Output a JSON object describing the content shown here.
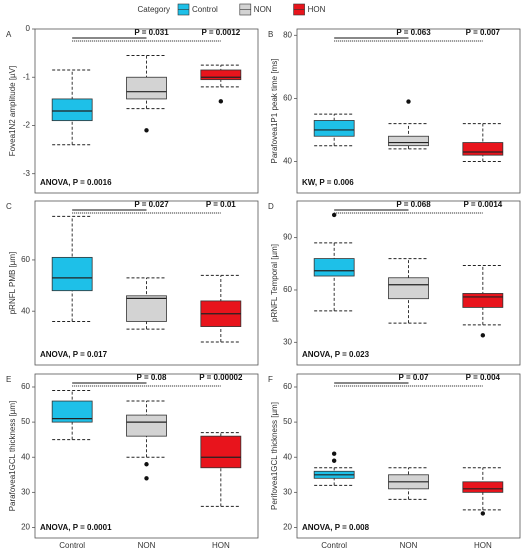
{
  "legend": {
    "title": "Category",
    "items": [
      {
        "name": "Control",
        "color": "#1ec0e8"
      },
      {
        "name": "NON",
        "color": "#d3d3d3"
      },
      {
        "name": "HON",
        "color": "#e8141c"
      }
    ]
  },
  "chart_data": [
    {
      "type": "box",
      "panel": "A",
      "ylabel": "Fovea1N2 amplitude [µV]",
      "ylim": [
        -3.4,
        0
      ],
      "yticks": [
        0,
        -1,
        -2,
        -3
      ],
      "boxes": [
        {
          "min": -2.4,
          "q1": -1.9,
          "median": -1.7,
          "q3": -1.45,
          "max": -0.85,
          "outliers": []
        },
        {
          "min": -1.65,
          "q1": -1.45,
          "median": -1.3,
          "q3": -1.0,
          "max": -0.55,
          "outliers": [
            -2.1
          ]
        },
        {
          "min": -1.2,
          "q1": -1.05,
          "median": -1.0,
          "q3": -0.85,
          "max": -0.75,
          "outliers": [
            -1.5
          ]
        }
      ],
      "pvalues": [
        "P = 0.031",
        "P = 0.0012"
      ],
      "test": "ANOVA, P = 0.0016"
    },
    {
      "type": "box",
      "panel": "B",
      "ylabel": "Parafovea1P1 peak time [ms]",
      "ylim": [
        30,
        82
      ],
      "yticks": [
        40,
        60,
        80
      ],
      "boxes": [
        {
          "min": 45,
          "q1": 48,
          "median": 50,
          "q3": 53,
          "max": 55,
          "outliers": []
        },
        {
          "min": 44,
          "q1": 45,
          "median": 46,
          "q3": 48,
          "max": 52,
          "outliers": [
            59
          ]
        },
        {
          "min": 40,
          "q1": 42,
          "median": 43,
          "q3": 46,
          "max": 52,
          "outliers": []
        }
      ],
      "pvalues": [
        "P = 0.063",
        "P = 0.007"
      ],
      "test": "KW, P = 0.006"
    },
    {
      "type": "box",
      "panel": "C",
      "ylabel": "pRNFL PMB [µm]",
      "ylim": [
        19,
        83
      ],
      "yticks": [
        40,
        60
      ],
      "boxes": [
        {
          "min": 36,
          "q1": 48,
          "median": 53,
          "q3": 61,
          "max": 77,
          "outliers": []
        },
        {
          "min": 33,
          "q1": 36,
          "median": 45,
          "q3": 46,
          "max": 53,
          "outliers": []
        },
        {
          "min": 28,
          "q1": 34,
          "median": 39,
          "q3": 44,
          "max": 54,
          "outliers": []
        }
      ],
      "pvalues": [
        "P = 0.027",
        "P = 0.01"
      ],
      "test": "ANOVA, P = 0.017"
    },
    {
      "type": "box",
      "panel": "D",
      "ylabel": "pRNFL Temporal [µm]",
      "ylim": [
        17,
        111
      ],
      "yticks": [
        30,
        60,
        90
      ],
      "boxes": [
        {
          "min": 48,
          "q1": 68,
          "median": 71,
          "q3": 78,
          "max": 87,
          "outliers": [
            103
          ]
        },
        {
          "min": 41,
          "q1": 55,
          "median": 63,
          "q3": 67,
          "max": 78,
          "outliers": []
        },
        {
          "min": 40,
          "q1": 50,
          "median": 56,
          "q3": 58,
          "max": 74,
          "outliers": [
            34
          ]
        }
      ],
      "pvalues": [
        "P = 0.068",
        "P = 0.0014"
      ],
      "test": "ANOVA, P = 0.023"
    },
    {
      "type": "box",
      "panel": "E",
      "ylabel": "Parafovea1GCL thickness [µm]",
      "ylim": [
        17,
        63.7
      ],
      "yticks": [
        20,
        30,
        40,
        50,
        60
      ],
      "categories": [
        "Control",
        "NON",
        "HON"
      ],
      "boxes": [
        {
          "min": 45,
          "q1": 50,
          "median": 51,
          "q3": 56,
          "max": 59,
          "outliers": []
        },
        {
          "min": 40,
          "q1": 46,
          "median": 50,
          "q3": 52,
          "max": 56,
          "outliers": [
            38,
            34
          ]
        },
        {
          "min": 26,
          "q1": 37,
          "median": 40,
          "q3": 46,
          "max": 47,
          "outliers": []
        }
      ],
      "pvalues": [
        "P = 0.08",
        "P = 0.00002"
      ],
      "test": "ANOVA, P = 0.0001"
    },
    {
      "type": "box",
      "panel": "F",
      "ylabel": "Perifovea1GCL thickness [µm]",
      "ylim": [
        17,
        63.7
      ],
      "yticks": [
        20,
        30,
        40,
        50,
        60
      ],
      "categories": [
        "Control",
        "NON",
        "HON"
      ],
      "boxes": [
        {
          "min": 32,
          "q1": 34,
          "median": 35,
          "q3": 36,
          "max": 37,
          "outliers": [
            39,
            41
          ]
        },
        {
          "min": 28,
          "q1": 31,
          "median": 33,
          "q3": 35,
          "max": 37,
          "outliers": []
        },
        {
          "min": 25,
          "q1": 30,
          "median": 31,
          "q3": 33,
          "max": 37,
          "outliers": [
            24
          ]
        }
      ],
      "pvalues": [
        "P = 0.07",
        "P = 0.004"
      ],
      "test": "ANOVA, P = 0.008"
    }
  ]
}
